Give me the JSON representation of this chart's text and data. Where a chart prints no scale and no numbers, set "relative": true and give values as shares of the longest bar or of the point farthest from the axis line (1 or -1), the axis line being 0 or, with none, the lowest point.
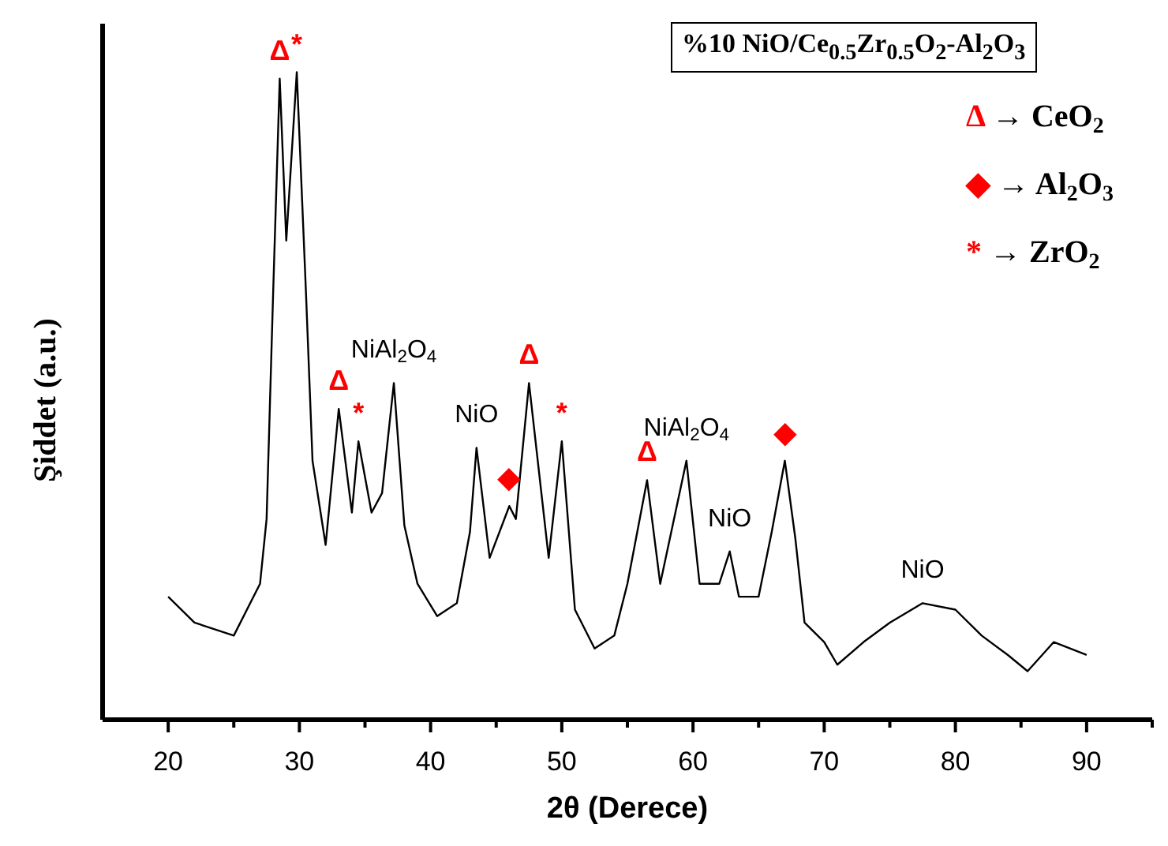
{
  "chart_data": {
    "type": "line",
    "relative": true,
    "title": "%10 NiO/Ce$_{0.5}$Zr$_{0.5}$O$_{2}$-Al$_{2}$O$_{3}$",
    "xlabel": "2θ (Derece)",
    "ylabel": "Şiddet (a.u.)",
    "xlim": [
      15,
      95
    ],
    "xticks": [
      20,
      {
        "value": 25,
        "label": null
      },
      30,
      {
        "value": 35,
        "label": null
      },
      40,
      {
        "value": 45,
        "label": null
      },
      50,
      {
        "value": 55,
        "label": null
      },
      60,
      {
        "value": 65,
        "label": null
      },
      70,
      {
        "value": 75,
        "label": null
      },
      80,
      {
        "value": 85,
        "label": null
      },
      90,
      {
        "value": 95,
        "label": null
      }
    ],
    "marker": "none",
    "line_style": "solid",
    "series": [
      {
        "color": "#000000",
        "x": [
          20,
          22,
          25,
          27,
          27.5,
          28,
          28.5,
          29,
          29.8,
          30.5,
          31,
          32,
          33,
          34,
          34.5,
          35.5,
          36.3,
          37.2,
          38,
          39,
          40.5,
          42,
          43,
          43.5,
          44.5,
          46,
          46.5,
          47.5,
          48.5,
          49,
          50,
          51,
          52.5,
          54,
          55,
          56.5,
          57.5,
          59.5,
          60.5,
          62,
          62.8,
          63.5,
          65,
          66,
          67,
          67.8,
          68.5,
          70,
          71,
          73,
          75,
          77.5,
          80,
          82,
          84,
          85.5,
          87.5,
          90
        ],
        "values": [
          0.19,
          0.15,
          0.13,
          0.21,
          0.31,
          0.66,
          0.99,
          0.74,
          1.0,
          0.66,
          0.4,
          0.27,
          0.48,
          0.32,
          0.43,
          0.32,
          0.35,
          0.52,
          0.3,
          0.21,
          0.16,
          0.18,
          0.29,
          0.42,
          0.25,
          0.33,
          0.31,
          0.52,
          0.34,
          0.25,
          0.43,
          0.17,
          0.11,
          0.13,
          0.21,
          0.37,
          0.21,
          0.4,
          0.21,
          0.21,
          0.26,
          0.19,
          0.19,
          0.29,
          0.4,
          0.28,
          0.15,
          0.12,
          0.085,
          0.12,
          0.15,
          0.18,
          0.17,
          0.13,
          0.1,
          0.075,
          0.12,
          0.1
        ]
      }
    ],
    "annotations": [
      {
        "text": "Δ",
        "x": 28.5,
        "y": 0.99
      },
      {
        "text": "*",
        "x": 29.8,
        "y": 1.0
      },
      {
        "text": "Δ",
        "x": 33,
        "y": 0.48
      },
      {
        "text": "*",
        "x": 34.5,
        "y": 0.43
      },
      {
        "text": "NiAl$_{2}$O$_{4}$",
        "x": 37.2,
        "y": 0.52
      },
      {
        "text": "NiO",
        "x": 43.5,
        "y": 0.42
      },
      {
        "text": "◆",
        "x": 46,
        "y": 0.33
      },
      {
        "text": "Δ",
        "x": 47.5,
        "y": 0.52
      },
      {
        "text": "*",
        "x": 50,
        "y": 0.43
      },
      {
        "text": "Δ",
        "x": 56.5,
        "y": 0.37
      },
      {
        "text": "NiAl$_{2}$O$_{4}$",
        "x": 59.5,
        "y": 0.4
      },
      {
        "text": "NiO",
        "x": 62.8,
        "y": 0.26
      },
      {
        "text": "◆",
        "x": 67,
        "y": 0.4
      },
      {
        "text": "NiO",
        "x": 77.5,
        "y": 0.18
      },
      "Δ → CeO$_{2}$",
      "◆ → Al$_{2}$O$_{3}$",
      "* → ZrO$_{2}$"
    ]
  }
}
